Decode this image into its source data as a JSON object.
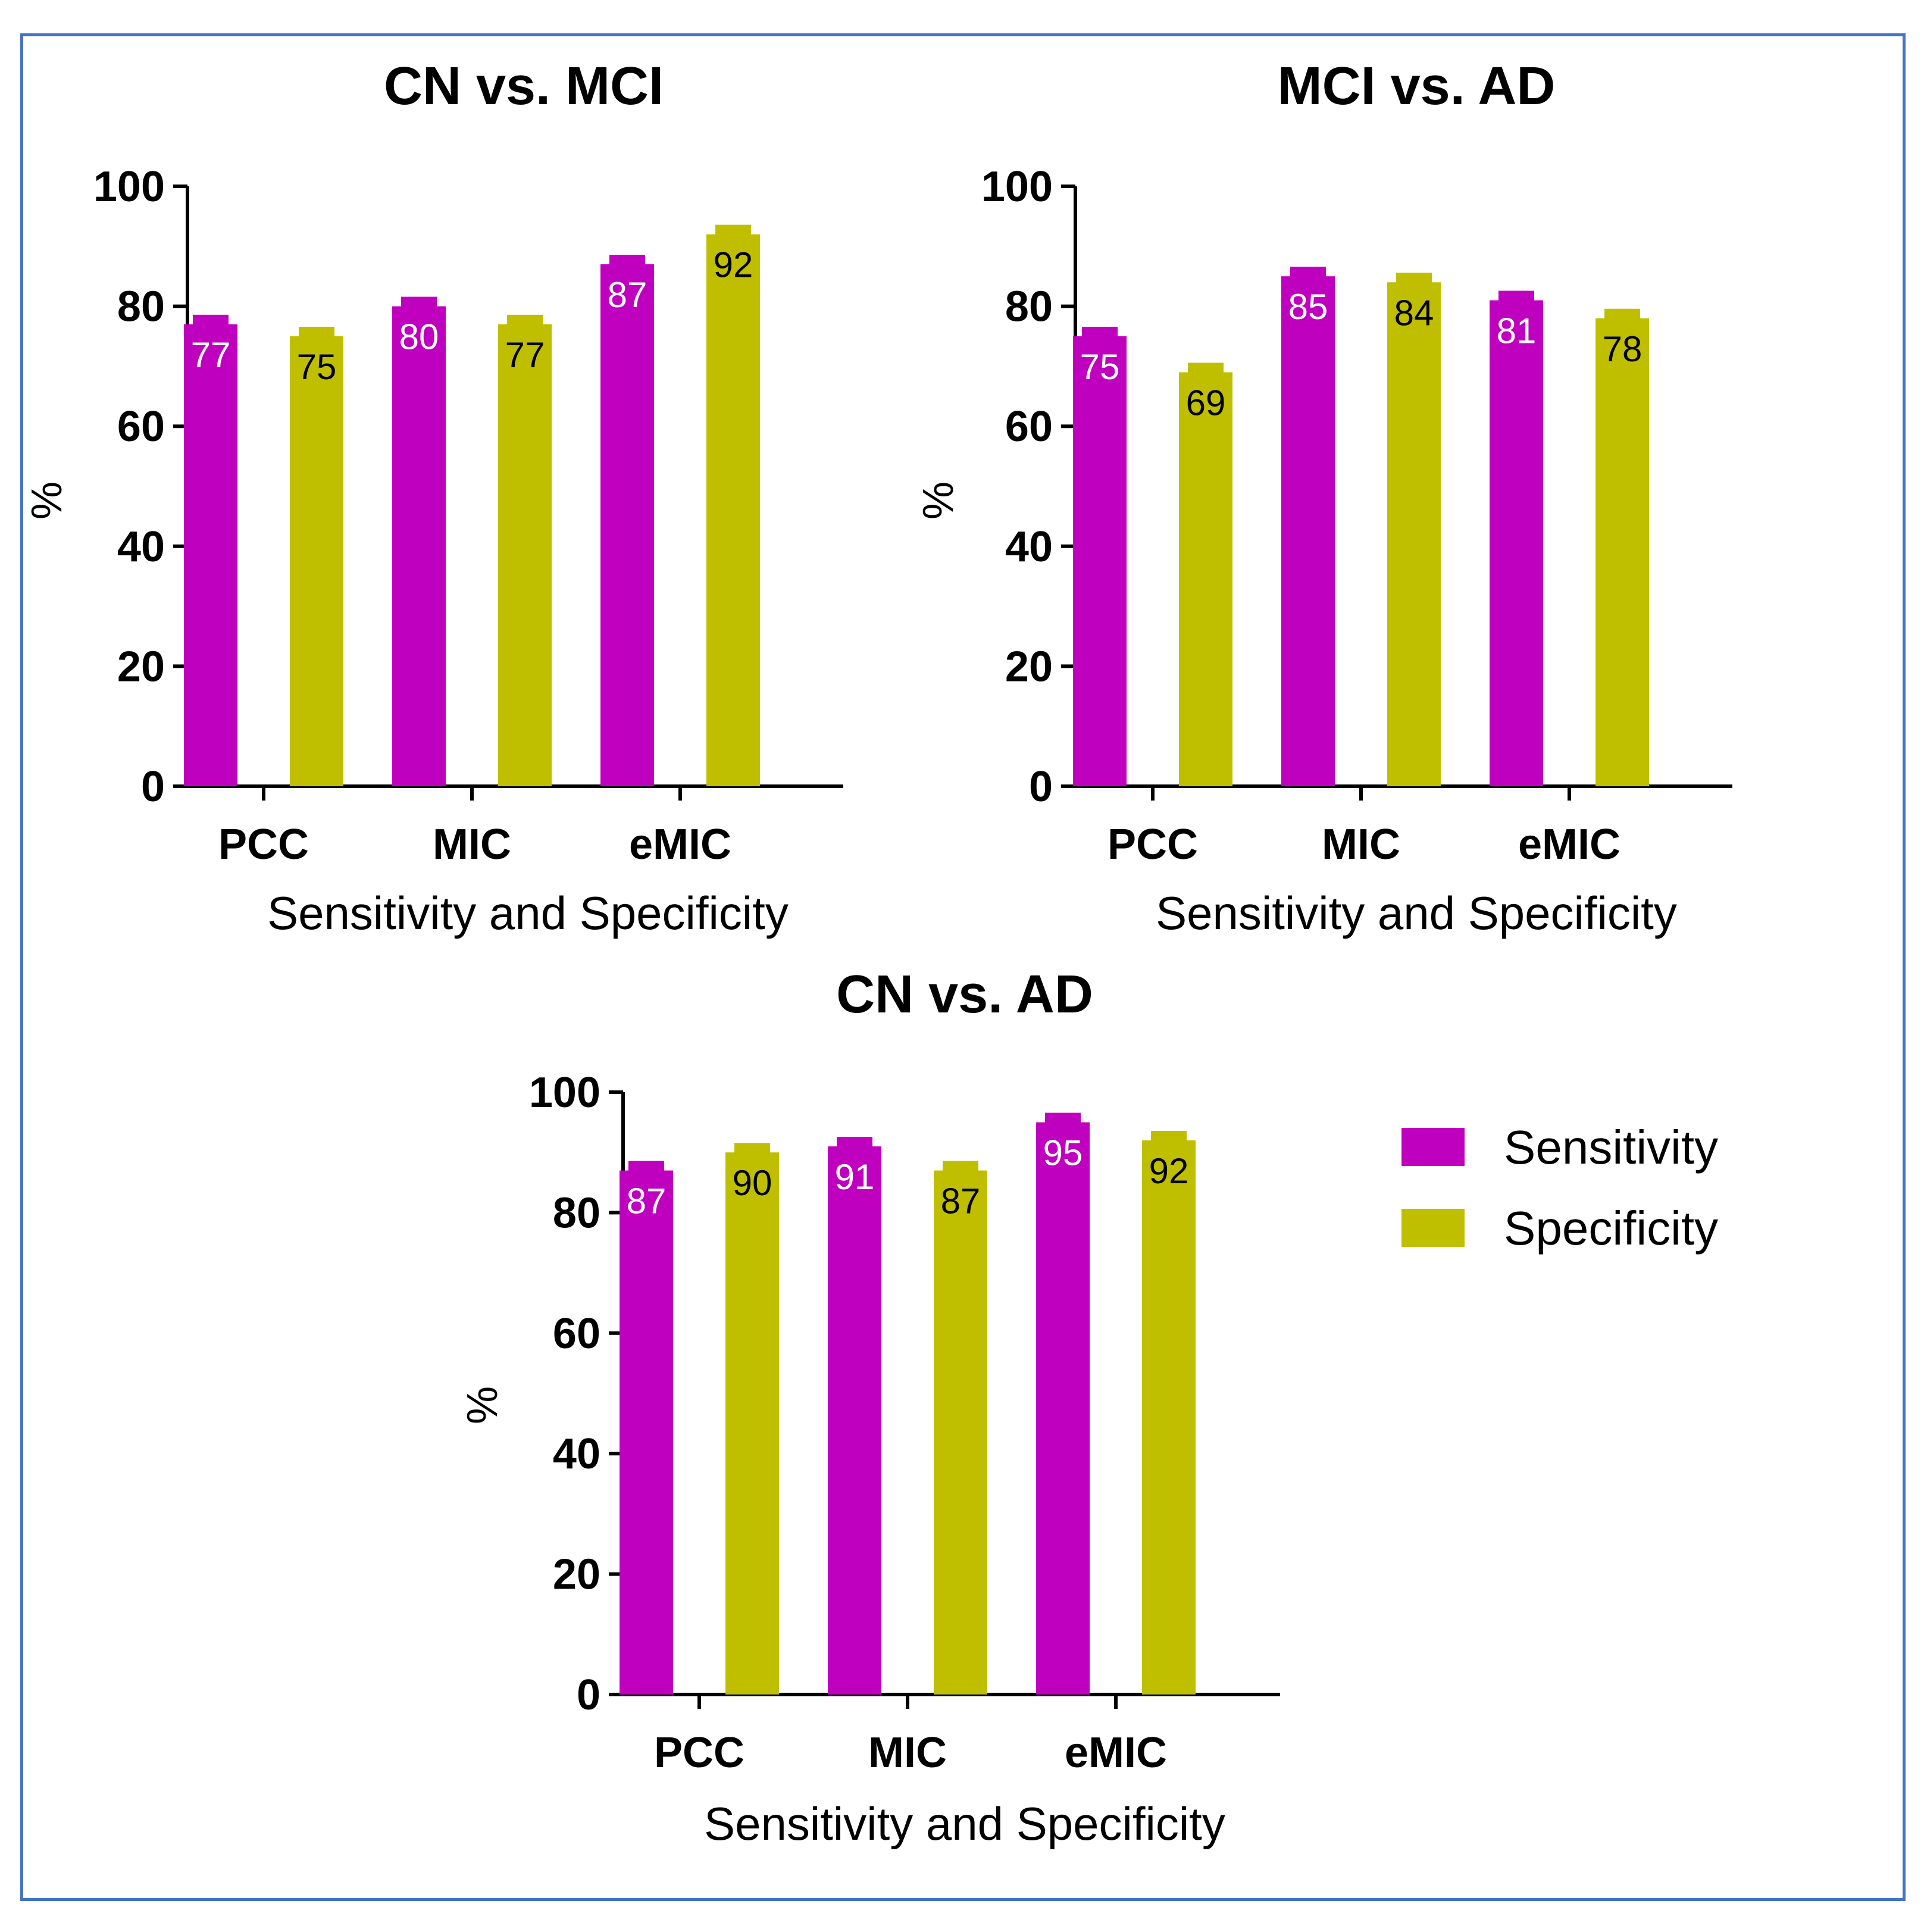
{
  "colors": {
    "sensitivity": "#BF00BF",
    "specificity": "#BFBF00",
    "frame": "#4472C4"
  },
  "legend": {
    "items": [
      {
        "label": "Sensitivity",
        "color": "#BF00BF"
      },
      {
        "label": "Specificity",
        "color": "#BFBF00"
      }
    ]
  },
  "chart_data": [
    {
      "type": "bar",
      "title": "CN vs. MCI",
      "xlabel": "Sensitivity and Specificity",
      "ylabel": "%",
      "ylim": [
        0,
        100
      ],
      "yticks": [
        "0",
        "20",
        "40",
        "60",
        "80",
        "100"
      ],
      "categories": [
        "PCC",
        "MIC",
        "eMIC"
      ],
      "series": [
        {
          "name": "Sensitivity",
          "values": [
            77,
            80,
            87
          ],
          "labels": [
            "77",
            "80",
            "87"
          ]
        },
        {
          "name": "Specificity",
          "values": [
            75,
            77,
            92
          ],
          "labels": [
            "75",
            "77",
            "92"
          ]
        }
      ]
    },
    {
      "type": "bar",
      "title": "MCI vs. AD",
      "xlabel": "Sensitivity and Specificity",
      "ylabel": "%",
      "ylim": [
        0,
        100
      ],
      "yticks": [
        "0",
        "20",
        "40",
        "60",
        "80",
        "100"
      ],
      "categories": [
        "PCC",
        "MIC",
        "eMIC"
      ],
      "series": [
        {
          "name": "Sensitivity",
          "values": [
            75,
            85,
            81
          ],
          "labels": [
            "75",
            "85",
            "81"
          ]
        },
        {
          "name": "Specificity",
          "values": [
            69,
            84,
            78
          ],
          "labels": [
            "69",
            "84",
            "78"
          ]
        }
      ]
    },
    {
      "type": "bar",
      "title": "CN vs. AD",
      "xlabel": "Sensitivity and Specificity",
      "ylabel": "%",
      "ylim": [
        0,
        100
      ],
      "yticks": [
        "0",
        "20",
        "40",
        "60",
        "80",
        "100"
      ],
      "categories": [
        "PCC",
        "MIC",
        "eMIC"
      ],
      "series": [
        {
          "name": "Sensitivity",
          "values": [
            87,
            91,
            95
          ],
          "labels": [
            "87",
            "91",
            "95"
          ]
        },
        {
          "name": "Specificity",
          "values": [
            90,
            87,
            92
          ],
          "labels": [
            "90",
            "87",
            "92"
          ]
        }
      ]
    }
  ]
}
